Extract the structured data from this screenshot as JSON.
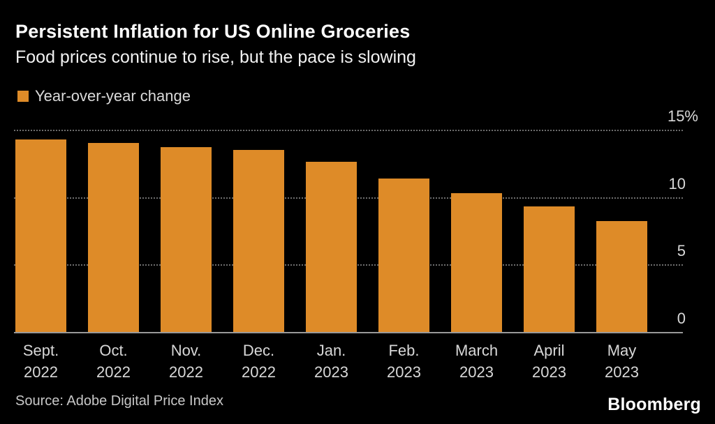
{
  "chart_data": {
    "type": "bar",
    "title": "Persistent Inflation for US Online Groceries",
    "subtitle": "Food prices continue to rise, but the pace is slowing",
    "legend": [
      "Year-over-year change"
    ],
    "legend_position": "top-left",
    "categories": [
      {
        "line1": "Sept.",
        "line2": "2022"
      },
      {
        "line1": "Oct.",
        "line2": "2022"
      },
      {
        "line1": "Nov.",
        "line2": "2022"
      },
      {
        "line1": "Dec.",
        "line2": "2022"
      },
      {
        "line1": "Jan.",
        "line2": "2023"
      },
      {
        "line1": "Feb.",
        "line2": "2023"
      },
      {
        "line1": "March",
        "line2": "2023"
      },
      {
        "line1": "April",
        "line2": "2023"
      },
      {
        "line1": "May",
        "line2": "2023"
      }
    ],
    "values": [
      14.3,
      14.0,
      13.7,
      13.5,
      12.6,
      11.4,
      10.3,
      9.3,
      8.2
    ],
    "unit": "%",
    "xlabel": "",
    "ylabel": "",
    "ylim": [
      0,
      15
    ],
    "yticks": [
      {
        "value": 15,
        "label": "15%"
      },
      {
        "value": 10,
        "label": "10"
      },
      {
        "value": 5,
        "label": "5"
      },
      {
        "value": 0,
        "label": "0"
      }
    ],
    "grid": "horizontal-dotted",
    "bar_color": "#DE8B28",
    "background_color": "#000000"
  },
  "footer": {
    "source": "Source: Adobe Digital Price Index",
    "brand": "Bloomberg"
  }
}
